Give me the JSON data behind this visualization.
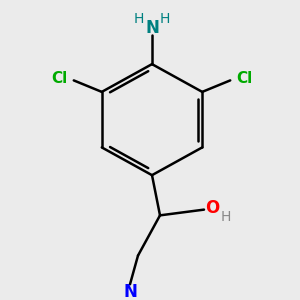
{
  "bg_color": "#ebebeb",
  "bond_color": "#000000",
  "bond_width": 1.8,
  "atom_colors": {
    "N_amine": "#008080",
    "H_amine": "#008080",
    "Cl": "#00aa00",
    "O": "#ff0000",
    "H_oh": "#888888",
    "N_tertiary": "#0000ff",
    "H": "#777777"
  },
  "font_size_atoms": 12,
  "font_size_h": 10,
  "font_size_cl": 11
}
